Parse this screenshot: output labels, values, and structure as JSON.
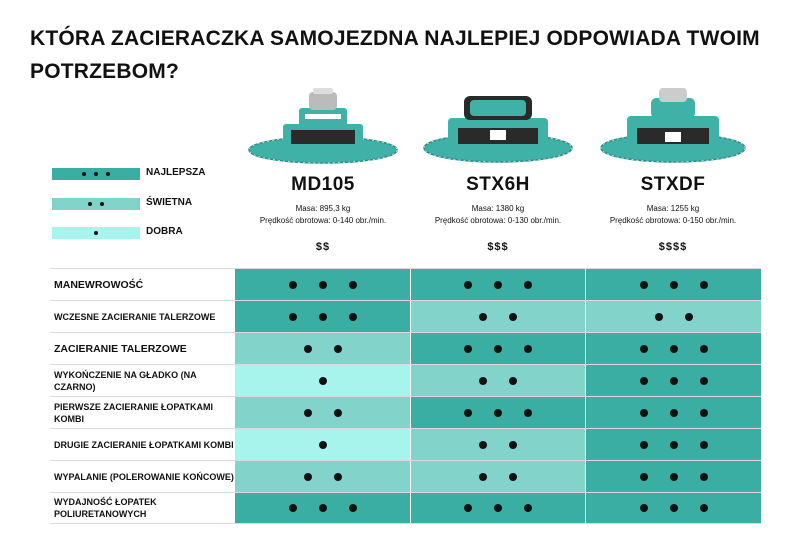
{
  "title": "KTÓRA ZACIERACZKA SAMOJEZDNA NAJLEPIEJ ODPOWIADA TWOIM POTRZEBOM?",
  "colors": {
    "best": "#3aaea3",
    "great": "#82d3c9",
    "good": "#a6f4ec",
    "machine_body": "#3fb1a7",
    "machine_dark": "#222222"
  },
  "legend": [
    {
      "label": "NAJLEPSZA",
      "dots": 3,
      "color": "#3aaea3"
    },
    {
      "label": "ŚWIETNA",
      "dots": 2,
      "color": "#82d3c9"
    },
    {
      "label": "DOBRA",
      "dots": 1,
      "color": "#a6f4ec"
    }
  ],
  "products": [
    {
      "name": "MD105",
      "mass": "Masa: 895,3 kg",
      "speed": "Prędkość obrotowa: 0-140 obr./min.",
      "price": "$$",
      "image": "ride-on-trowel-md105"
    },
    {
      "name": "STX6H",
      "mass": "Masa: 1380 kg",
      "speed": "Prędkość obrotowa: 0-130 obr./min.",
      "price": "$$$",
      "image": "ride-on-trowel-stx6h"
    },
    {
      "name": "STXDF",
      "mass": "Masa: 1255 kg",
      "speed": "Prędkość obrotowa: 0-150 obr./min.",
      "price": "$$$$",
      "image": "ride-on-trowel-stxdf"
    }
  ],
  "rows": [
    {
      "label": "MANEWROWOŚĆ",
      "ratings": [
        3,
        3,
        3
      ]
    },
    {
      "label": "WCZESNE ZACIERANIE TALERZOWE",
      "ratings": [
        3,
        2,
        2
      ]
    },
    {
      "label": "ZACIERANIE TALERZOWE",
      "ratings": [
        2,
        3,
        3
      ]
    },
    {
      "label": "WYKOŃCZENIE NA GŁADKO (NA CZARNO)",
      "ratings": [
        1,
        2,
        3
      ]
    },
    {
      "label": "PIERWSZE ZACIERANIE ŁOPATKAMI KOMBI",
      "ratings": [
        2,
        3,
        3
      ]
    },
    {
      "label": "DRUGIE ZACIERANIE ŁOPATKAMI KOMBI",
      "ratings": [
        1,
        2,
        3
      ]
    },
    {
      "label": "WYPALANIE (POLEROWANIE KOŃCOWE)",
      "ratings": [
        2,
        2,
        3
      ]
    },
    {
      "label": "WYDAJNOŚĆ ŁOPATEK POLIURETANOWYCH",
      "ratings": [
        3,
        3,
        3
      ]
    }
  ]
}
